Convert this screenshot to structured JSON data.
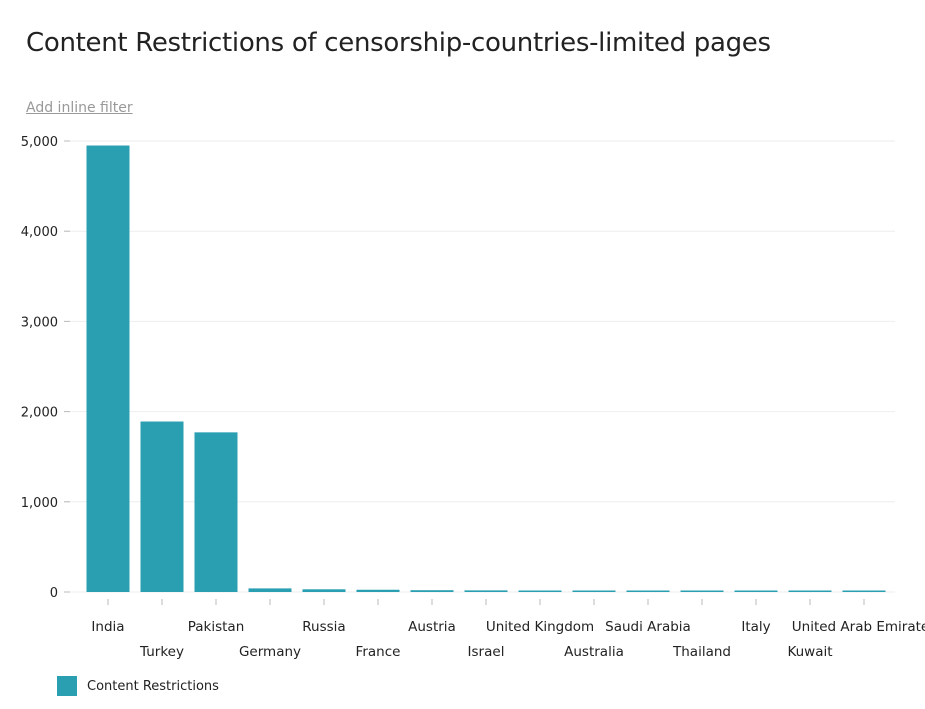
{
  "title": "Content Restrictions of censorship-countries-limited pages",
  "inline_filter_label": "Add inline filter",
  "legend": {
    "label": "Content Restrictions",
    "color": "#2a9fb1"
  },
  "chart_data": {
    "type": "bar",
    "categories": [
      "India",
      "Turkey",
      "Pakistan",
      "Germany",
      "Russia",
      "France",
      "Austria",
      "Israel",
      "United Kingdom",
      "Australia",
      "Saudi Arabia",
      "Thailand",
      "Italy",
      "Kuwait",
      "United Arab Emirates"
    ],
    "series": [
      {
        "name": "Content Restrictions",
        "values": [
          4950,
          1890,
          1770,
          40,
          30,
          25,
          20,
          18,
          12,
          10,
          9,
          8,
          6,
          5,
          4
        ]
      }
    ],
    "yticks": [
      "0",
      "1,000",
      "2,000",
      "3,000",
      "4,000",
      "5,000"
    ],
    "ylim": [
      0,
      5000
    ],
    "grid": true,
    "legend_position": "bottom-left"
  }
}
